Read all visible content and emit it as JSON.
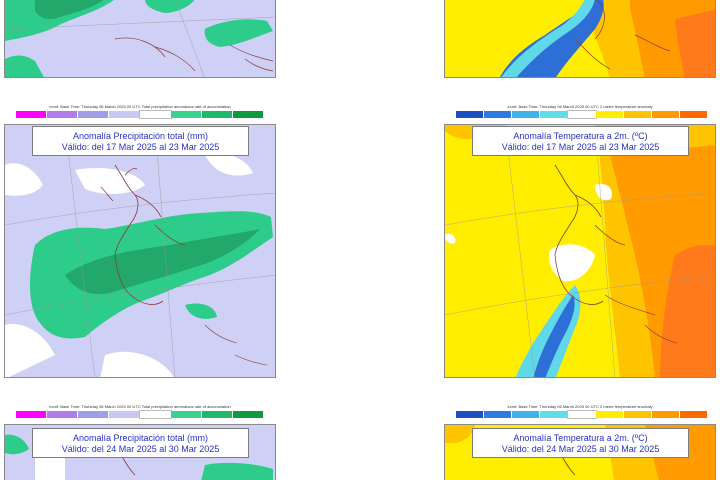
{
  "header_text": "ecmf: Base Time: Thursday 06 March 2025 00 UTC",
  "precip_header_suffix": "Total precipitation anomalous rate of accumulation",
  "temp_header_suffix": "2 metre temperature anomaly",
  "precip_legend_colors": [
    "#ff00ff",
    "#b07de8",
    "#9f9ee8",
    "#c8c8f2",
    "#ffffff",
    "#3bd28f",
    "#20b869",
    "#0f9a3d"
  ],
  "temp_legend_colors": [
    "#1d4fc0",
    "#2f7ce0",
    "#41b3ea",
    "#61dde6",
    "#ffffff",
    "#ffee00",
    "#ffc400",
    "#ff9a00",
    "#ff6a00"
  ],
  "precip_title": "Anomalía Precipitación total (mm)",
  "temp_title": "Anomalía Temperatura a 2m. (ºC)",
  "valid_wk2": "Válido: del 17 Mar 2025 al 23 Mar 2025",
  "valid_wk3": "Válido: del 24 Mar 2025 al 30 Mar 2025",
  "colors": {
    "precip_green": "#2ecc8a",
    "precip_dark_green": "#21a86a",
    "precip_lavender": "#cfd0f5",
    "temp_yellow": "#ffee00",
    "temp_orange": "#ff9a00",
    "temp_dark_orange": "#ff7a1a",
    "temp_blue": "#2d6fd6",
    "temp_cyan": "#5fd8e8"
  }
}
